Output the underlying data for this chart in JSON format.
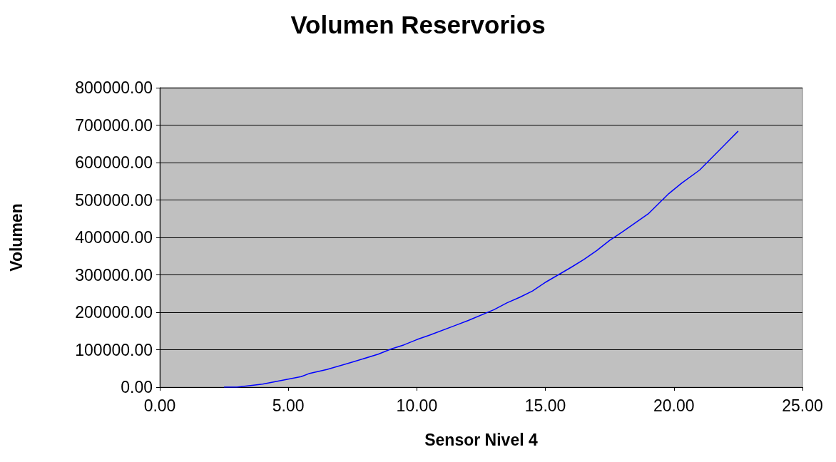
{
  "chart_data": {
    "type": "line",
    "title": "Volumen Reservorios",
    "xlabel": "Sensor Nivel 4",
    "ylabel": "Volumen",
    "series": [
      {
        "color": "#0000ff",
        "x": [
          2.5,
          3.0,
          4.0,
          5.5,
          5.8,
          6.5,
          7.5,
          8.5,
          9.0,
          9.5,
          10.0,
          10.5,
          11.5,
          12.0,
          13.0,
          13.5,
          14.0,
          14.5,
          15.0,
          16.0,
          16.5,
          17.0,
          17.5,
          18.0,
          19.0,
          19.8,
          20.3,
          21.0,
          22.5
        ],
        "values": [
          0,
          0,
          8000,
          28000,
          36000,
          47000,
          67000,
          88000,
          102000,
          113000,
          127000,
          139000,
          165000,
          178000,
          207000,
          225000,
          240000,
          257000,
          280000,
          320000,
          341000,
          365000,
          392000,
          415000,
          463000,
          517000,
          545000,
          580000,
          684000
        ]
      }
    ],
    "xlim": [
      0,
      25
    ],
    "xticks": [
      {
        "value": 0,
        "label": "0.00"
      },
      {
        "value": 5,
        "label": "5.00"
      },
      {
        "value": 10,
        "label": "10.00"
      },
      {
        "value": 15,
        "label": "15.00"
      },
      {
        "value": 20,
        "label": "20.00"
      },
      {
        "value": 25,
        "label": "25.00"
      }
    ],
    "ylim": [
      0,
      800000
    ],
    "yticks": [
      {
        "value": 0,
        "label": "0.00"
      },
      {
        "value": 100000,
        "label": "100000.00"
      },
      {
        "value": 200000,
        "label": "200000.00"
      },
      {
        "value": 300000,
        "label": "300000.00"
      },
      {
        "value": 400000,
        "label": "400000.00"
      },
      {
        "value": 500000,
        "label": "500000.00"
      },
      {
        "value": 600000,
        "label": "600000.00"
      },
      {
        "value": 700000,
        "label": "700000.00"
      },
      {
        "value": 800000,
        "label": "800000.00"
      }
    ],
    "grid": "y",
    "marker": "none",
    "line_style": "solid"
  }
}
